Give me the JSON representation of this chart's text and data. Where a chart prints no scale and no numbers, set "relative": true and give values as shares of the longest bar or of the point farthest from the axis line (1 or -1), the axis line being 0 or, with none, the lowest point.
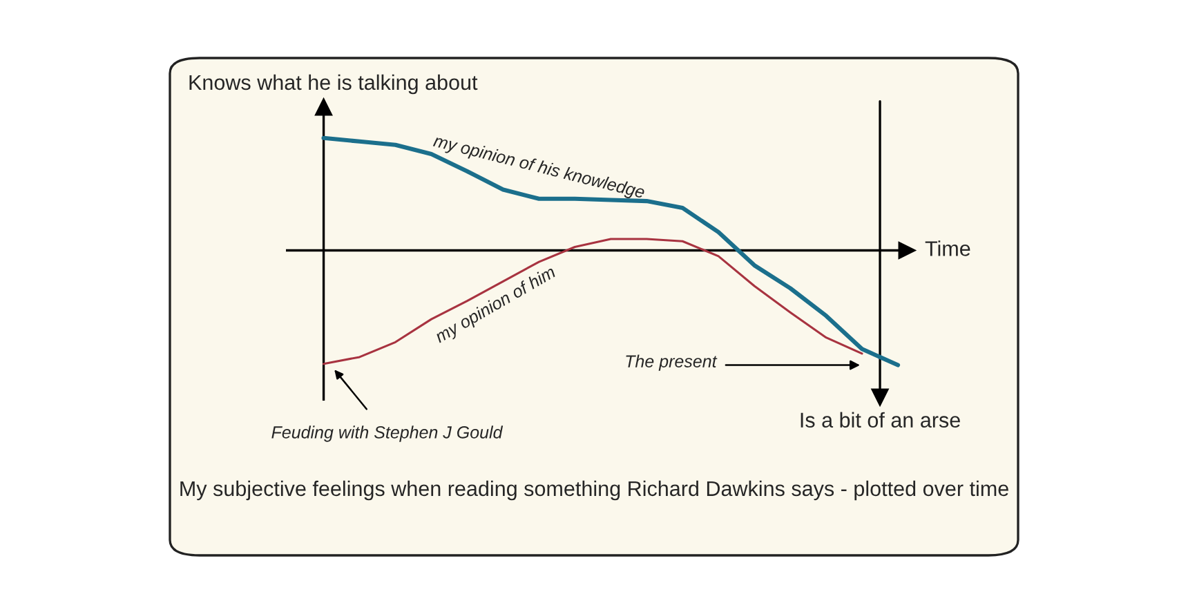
{
  "chart_data": {
    "type": "line",
    "relative": true,
    "ylabel": "Knows what he is talking about",
    "xlabel": "Time",
    "categories": [
      null,
      null,
      null,
      null,
      null,
      null,
      null,
      null,
      null,
      null,
      null,
      null,
      null,
      null,
      null,
      null,
      null
    ],
    "series": [
      {
        "name": "my opinion of his knowledge",
        "color": "#1b6f8c",
        "values": [
          0.98,
          0.95,
          0.92,
          0.84,
          0.69,
          0.53,
          0.45,
          0.45,
          0.44,
          0.43,
          0.37,
          0.16,
          -0.13,
          -0.33,
          -0.57,
          -0.86,
          -1
        ]
      },
      {
        "name": "my opinion of him",
        "color": "#a83340",
        "values": [
          -0.99,
          -0.93,
          -0.8,
          -0.6,
          -0.44,
          -0.27,
          -0.1,
          0.03,
          0.1,
          0.1,
          0.08,
          -0.05,
          -0.31,
          -0.54,
          -0.76,
          -0.9,
          null
        ]
      }
    ],
    "annotations": [
      "Feuding with Stephen J Gould",
      "The present",
      "Is a bit of an arse",
      "My subjective feelings when reading something Richard Dawkins says - plotted over time"
    ],
    "marker": "none",
    "line_style": "solid",
    "grid": false,
    "legend": false
  }
}
